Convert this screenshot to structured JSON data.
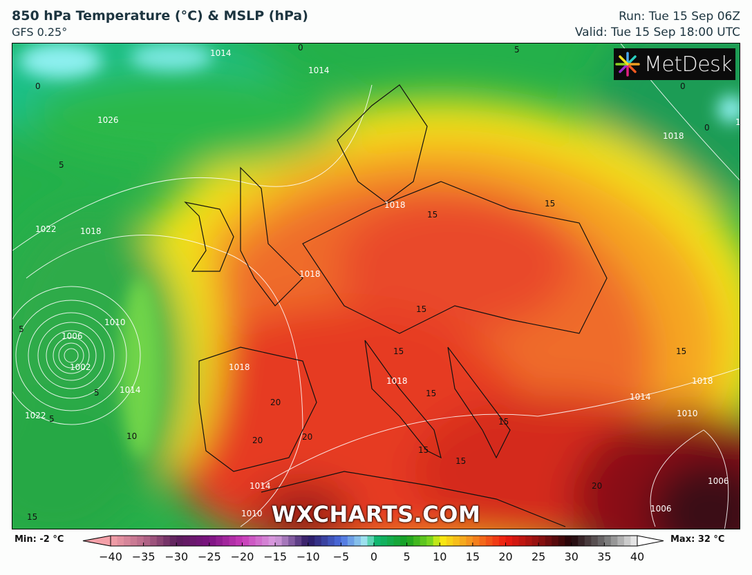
{
  "header": {
    "title": "850 hPa Temperature (°C) & MSLP (hPa)",
    "model": "GFS 0.25°",
    "run": "Run: Tue 15 Sep 06Z",
    "valid": "Valid: Tue 15 Sep 18:00 UTC"
  },
  "logo": {
    "text": "MetDesk"
  },
  "watermark": "WXCHARTS.COM",
  "map": {
    "temperature_labels": [
      "0",
      "0",
      "0",
      "0",
      "5",
      "5",
      "5",
      "5",
      "5",
      "10",
      "15",
      "15",
      "15",
      "15",
      "15",
      "15",
      "15",
      "15",
      "15",
      "15",
      "20",
      "20",
      "20",
      "20"
    ],
    "pressure_labels": [
      "1014",
      "1014",
      "1026",
      "1022",
      "1022",
      "1018",
      "1018",
      "1018",
      "1018",
      "1018",
      "1018",
      "1018",
      "1010",
      "1010",
      "1010",
      "1006",
      "1006",
      "1006",
      "1002",
      "1014",
      "1014",
      "1014",
      "1010"
    ]
  },
  "colorbar": {
    "min_label": "Min: -2 °C",
    "max_label": "Max: 32 °C",
    "ticks": [
      "−40",
      "−35",
      "−30",
      "−25",
      "−20",
      "−15",
      "−10",
      "−5",
      "0",
      "5",
      "10",
      "15",
      "20",
      "25",
      "30",
      "35",
      "40"
    ],
    "stops": [
      {
        "t": -40,
        "color": "#f4a0a8"
      },
      {
        "t": -35,
        "color": "#b86a8a"
      },
      {
        "t": -30,
        "color": "#5a1d5a"
      },
      {
        "t": -25,
        "color": "#7a1280"
      },
      {
        "t": -20,
        "color": "#c83ab8"
      },
      {
        "t": -15,
        "color": "#d9a0e0"
      },
      {
        "t": -10,
        "color": "#2a1660"
      },
      {
        "t": -5,
        "color": "#4a6ee0"
      },
      {
        "t": -1,
        "color": "#a8f0f0"
      },
      {
        "t": 0,
        "color": "#10b878"
      },
      {
        "t": 5,
        "color": "#18a020"
      },
      {
        "t": 9,
        "color": "#88dd20"
      },
      {
        "t": 10,
        "color": "#f8f010"
      },
      {
        "t": 14,
        "color": "#f6a020"
      },
      {
        "t": 20,
        "color": "#ee1a10"
      },
      {
        "t": 25,
        "color": "#901010"
      },
      {
        "t": 30,
        "color": "#200408"
      },
      {
        "t": 35,
        "color": "#707070"
      },
      {
        "t": 40,
        "color": "#f2f2f2"
      }
    ]
  }
}
